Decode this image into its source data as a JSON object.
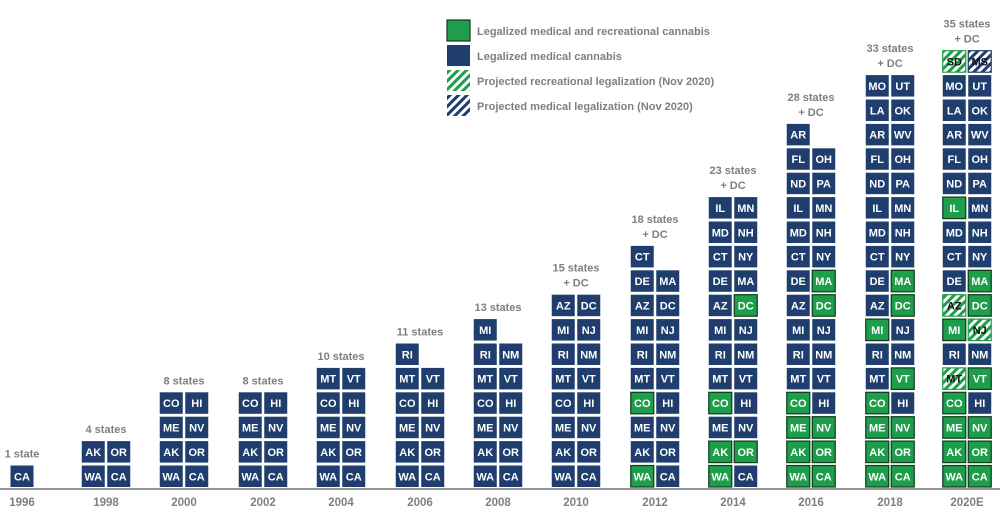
{
  "chart_data": {
    "type": "bar",
    "colors": {
      "medical": "#1f3e6e",
      "recreational": "#1e9e4a",
      "projected_recreational": "#1e9e4a",
      "projected_medical": "#1f3e6e"
    },
    "legend": [
      {
        "key": "recreational",
        "label": "Legalized medical and recreational cannabis",
        "style": "solid"
      },
      {
        "key": "medical",
        "label": "Legalized medical cannabis",
        "style": "solid"
      },
      {
        "key": "projected_recreational",
        "label": "Projected recreational legalization (Nov 2020)",
        "style": "hatch"
      },
      {
        "key": "projected_medical",
        "label": "Projected medical legalization (Nov 2020)",
        "style": "hatch"
      }
    ],
    "years": [
      {
        "year": "1996",
        "count_label": [
          "1 state"
        ],
        "value": 1,
        "left": [
          {
            "s": "CA",
            "t": "m"
          }
        ],
        "right": []
      },
      {
        "year": "1998",
        "count_label": [
          "4 states"
        ],
        "value": 4,
        "left": [
          {
            "s": "AK",
            "t": "m"
          },
          {
            "s": "WA",
            "t": "m"
          }
        ],
        "right": [
          {
            "s": "OR",
            "t": "m"
          },
          {
            "s": "CA",
            "t": "m"
          }
        ]
      },
      {
        "year": "2000",
        "count_label": [
          "8 states"
        ],
        "value": 8,
        "left": [
          {
            "s": "CO",
            "t": "m"
          },
          {
            "s": "ME",
            "t": "m"
          },
          {
            "s": "AK",
            "t": "m"
          },
          {
            "s": "WA",
            "t": "m"
          }
        ],
        "right": [
          {
            "s": "HI",
            "t": "m"
          },
          {
            "s": "NV",
            "t": "m"
          },
          {
            "s": "OR",
            "t": "m"
          },
          {
            "s": "CA",
            "t": "m"
          }
        ]
      },
      {
        "year": "2002",
        "count_label": [
          "8 states"
        ],
        "value": 8,
        "left": [
          {
            "s": "CO",
            "t": "m"
          },
          {
            "s": "ME",
            "t": "m"
          },
          {
            "s": "AK",
            "t": "m"
          },
          {
            "s": "WA",
            "t": "m"
          }
        ],
        "right": [
          {
            "s": "HI",
            "t": "m"
          },
          {
            "s": "NV",
            "t": "m"
          },
          {
            "s": "OR",
            "t": "m"
          },
          {
            "s": "CA",
            "t": "m"
          }
        ]
      },
      {
        "year": "2004",
        "count_label": [
          "10 states"
        ],
        "value": 10,
        "left": [
          {
            "s": "MT",
            "t": "m"
          },
          {
            "s": "CO",
            "t": "m"
          },
          {
            "s": "ME",
            "t": "m"
          },
          {
            "s": "AK",
            "t": "m"
          },
          {
            "s": "WA",
            "t": "m"
          }
        ],
        "right": [
          {
            "s": "VT",
            "t": "m"
          },
          {
            "s": "HI",
            "t": "m"
          },
          {
            "s": "NV",
            "t": "m"
          },
          {
            "s": "OR",
            "t": "m"
          },
          {
            "s": "CA",
            "t": "m"
          }
        ]
      },
      {
        "year": "2006",
        "count_label": [
          "11 states"
        ],
        "value": 11,
        "left": [
          {
            "s": "RI",
            "t": "m"
          },
          {
            "s": "MT",
            "t": "m"
          },
          {
            "s": "CO",
            "t": "m"
          },
          {
            "s": "ME",
            "t": "m"
          },
          {
            "s": "AK",
            "t": "m"
          },
          {
            "s": "WA",
            "t": "m"
          }
        ],
        "right": [
          {
            "s": "VT",
            "t": "m"
          },
          {
            "s": "HI",
            "t": "m"
          },
          {
            "s": "NV",
            "t": "m"
          },
          {
            "s": "OR",
            "t": "m"
          },
          {
            "s": "CA",
            "t": "m"
          }
        ]
      },
      {
        "year": "2008",
        "count_label": [
          "13 states"
        ],
        "value": 13,
        "left": [
          {
            "s": "MI",
            "t": "m"
          },
          {
            "s": "RI",
            "t": "m"
          },
          {
            "s": "MT",
            "t": "m"
          },
          {
            "s": "CO",
            "t": "m"
          },
          {
            "s": "ME",
            "t": "m"
          },
          {
            "s": "AK",
            "t": "m"
          },
          {
            "s": "WA",
            "t": "m"
          }
        ],
        "right": [
          {
            "s": "NM",
            "t": "m"
          },
          {
            "s": "VT",
            "t": "m"
          },
          {
            "s": "HI",
            "t": "m"
          },
          {
            "s": "NV",
            "t": "m"
          },
          {
            "s": "OR",
            "t": "m"
          },
          {
            "s": "CA",
            "t": "m"
          }
        ]
      },
      {
        "year": "2010",
        "count_label": [
          "15 states",
          "+ DC"
        ],
        "value": 15,
        "left": [
          {
            "s": "AZ",
            "t": "m"
          },
          {
            "s": "MI",
            "t": "m"
          },
          {
            "s": "RI",
            "t": "m"
          },
          {
            "s": "MT",
            "t": "m"
          },
          {
            "s": "CO",
            "t": "m"
          },
          {
            "s": "ME",
            "t": "m"
          },
          {
            "s": "AK",
            "t": "m"
          },
          {
            "s": "WA",
            "t": "m"
          }
        ],
        "right": [
          {
            "s": "DC",
            "t": "m"
          },
          {
            "s": "NJ",
            "t": "m"
          },
          {
            "s": "NM",
            "t": "m"
          },
          {
            "s": "VT",
            "t": "m"
          },
          {
            "s": "HI",
            "t": "m"
          },
          {
            "s": "NV",
            "t": "m"
          },
          {
            "s": "OR",
            "t": "m"
          },
          {
            "s": "CA",
            "t": "m"
          }
        ]
      },
      {
        "year": "2012",
        "count_label": [
          "18 states",
          "+ DC"
        ],
        "value": 18,
        "left": [
          {
            "s": "CT",
            "t": "m"
          },
          {
            "s": "DE",
            "t": "m"
          },
          {
            "s": "AZ",
            "t": "m"
          },
          {
            "s": "MI",
            "t": "m"
          },
          {
            "s": "RI",
            "t": "m"
          },
          {
            "s": "MT",
            "t": "m"
          },
          {
            "s": "CO",
            "t": "r"
          },
          {
            "s": "ME",
            "t": "m"
          },
          {
            "s": "AK",
            "t": "m"
          },
          {
            "s": "WA",
            "t": "r"
          }
        ],
        "right": [
          {
            "s": "MA",
            "t": "m"
          },
          {
            "s": "DC",
            "t": "m"
          },
          {
            "s": "NJ",
            "t": "m"
          },
          {
            "s": "NM",
            "t": "m"
          },
          {
            "s": "VT",
            "t": "m"
          },
          {
            "s": "HI",
            "t": "m"
          },
          {
            "s": "NV",
            "t": "m"
          },
          {
            "s": "OR",
            "t": "m"
          },
          {
            "s": "CA",
            "t": "m"
          }
        ]
      },
      {
        "year": "2014",
        "count_label": [
          "23 states",
          "+ DC"
        ],
        "value": 23,
        "left": [
          {
            "s": "IL",
            "t": "m"
          },
          {
            "s": "MD",
            "t": "m"
          },
          {
            "s": "CT",
            "t": "m"
          },
          {
            "s": "DE",
            "t": "m"
          },
          {
            "s": "AZ",
            "t": "m"
          },
          {
            "s": "MI",
            "t": "m"
          },
          {
            "s": "RI",
            "t": "m"
          },
          {
            "s": "MT",
            "t": "m"
          },
          {
            "s": "CO",
            "t": "r"
          },
          {
            "s": "ME",
            "t": "m"
          },
          {
            "s": "AK",
            "t": "r"
          },
          {
            "s": "WA",
            "t": "r"
          }
        ],
        "right": [
          {
            "s": "MN",
            "t": "m"
          },
          {
            "s": "NH",
            "t": "m"
          },
          {
            "s": "NY",
            "t": "m"
          },
          {
            "s": "MA",
            "t": "m"
          },
          {
            "s": "DC",
            "t": "r"
          },
          {
            "s": "NJ",
            "t": "m"
          },
          {
            "s": "NM",
            "t": "m"
          },
          {
            "s": "VT",
            "t": "m"
          },
          {
            "s": "HI",
            "t": "m"
          },
          {
            "s": "NV",
            "t": "m"
          },
          {
            "s": "OR",
            "t": "r"
          },
          {
            "s": "CA",
            "t": "m"
          }
        ]
      },
      {
        "year": "2016",
        "count_label": [
          "28 states",
          "+ DC"
        ],
        "value": 28,
        "left": [
          {
            "s": "AR",
            "t": "m"
          },
          {
            "s": "FL",
            "t": "m"
          },
          {
            "s": "ND",
            "t": "m"
          },
          {
            "s": "IL",
            "t": "m"
          },
          {
            "s": "MD",
            "t": "m"
          },
          {
            "s": "CT",
            "t": "m"
          },
          {
            "s": "DE",
            "t": "m"
          },
          {
            "s": "AZ",
            "t": "m"
          },
          {
            "s": "MI",
            "t": "m"
          },
          {
            "s": "RI",
            "t": "m"
          },
          {
            "s": "MT",
            "t": "m"
          },
          {
            "s": "CO",
            "t": "r"
          },
          {
            "s": "ME",
            "t": "r"
          },
          {
            "s": "AK",
            "t": "r"
          },
          {
            "s": "WA",
            "t": "r"
          }
        ],
        "right": [
          {
            "s": "OH",
            "t": "m"
          },
          {
            "s": "PA",
            "t": "m"
          },
          {
            "s": "MN",
            "t": "m"
          },
          {
            "s": "NH",
            "t": "m"
          },
          {
            "s": "NY",
            "t": "m"
          },
          {
            "s": "MA",
            "t": "r"
          },
          {
            "s": "DC",
            "t": "r"
          },
          {
            "s": "NJ",
            "t": "m"
          },
          {
            "s": "NM",
            "t": "m"
          },
          {
            "s": "VT",
            "t": "m"
          },
          {
            "s": "HI",
            "t": "m"
          },
          {
            "s": "NV",
            "t": "r"
          },
          {
            "s": "OR",
            "t": "r"
          },
          {
            "s": "CA",
            "t": "r"
          }
        ]
      },
      {
        "year": "2018",
        "count_label": [
          "33 states",
          "+ DC"
        ],
        "value": 33,
        "left": [
          {
            "s": "MO",
            "t": "m"
          },
          {
            "s": "LA",
            "t": "m"
          },
          {
            "s": "AR",
            "t": "m"
          },
          {
            "s": "FL",
            "t": "m"
          },
          {
            "s": "ND",
            "t": "m"
          },
          {
            "s": "IL",
            "t": "m"
          },
          {
            "s": "MD",
            "t": "m"
          },
          {
            "s": "CT",
            "t": "m"
          },
          {
            "s": "DE",
            "t": "m"
          },
          {
            "s": "AZ",
            "t": "m"
          },
          {
            "s": "MI",
            "t": "r"
          },
          {
            "s": "RI",
            "t": "m"
          },
          {
            "s": "MT",
            "t": "m"
          },
          {
            "s": "CO",
            "t": "r"
          },
          {
            "s": "ME",
            "t": "r"
          },
          {
            "s": "AK",
            "t": "r"
          },
          {
            "s": "WA",
            "t": "r"
          }
        ],
        "right": [
          {
            "s": "UT",
            "t": "m"
          },
          {
            "s": "OK",
            "t": "m"
          },
          {
            "s": "WV",
            "t": "m"
          },
          {
            "s": "OH",
            "t": "m"
          },
          {
            "s": "PA",
            "t": "m"
          },
          {
            "s": "MN",
            "t": "m"
          },
          {
            "s": "NH",
            "t": "m"
          },
          {
            "s": "NY",
            "t": "m"
          },
          {
            "s": "MA",
            "t": "r"
          },
          {
            "s": "DC",
            "t": "r"
          },
          {
            "s": "NJ",
            "t": "m"
          },
          {
            "s": "NM",
            "t": "m"
          },
          {
            "s": "VT",
            "t": "r"
          },
          {
            "s": "HI",
            "t": "m"
          },
          {
            "s": "NV",
            "t": "r"
          },
          {
            "s": "OR",
            "t": "r"
          },
          {
            "s": "CA",
            "t": "r"
          }
        ]
      },
      {
        "year": "2020E",
        "count_label": [
          "35 states",
          "+ DC"
        ],
        "value": 35,
        "left": [
          {
            "s": "SD",
            "t": "pr"
          },
          {
            "s": "MO",
            "t": "m"
          },
          {
            "s": "LA",
            "t": "m"
          },
          {
            "s": "AR",
            "t": "m"
          },
          {
            "s": "FL",
            "t": "m"
          },
          {
            "s": "ND",
            "t": "m"
          },
          {
            "s": "IL",
            "t": "r"
          },
          {
            "s": "MD",
            "t": "m"
          },
          {
            "s": "CT",
            "t": "m"
          },
          {
            "s": "DE",
            "t": "m"
          },
          {
            "s": "AZ",
            "t": "pr"
          },
          {
            "s": "MI",
            "t": "r"
          },
          {
            "s": "RI",
            "t": "m"
          },
          {
            "s": "MT",
            "t": "pr"
          },
          {
            "s": "CO",
            "t": "r"
          },
          {
            "s": "ME",
            "t": "r"
          },
          {
            "s": "AK",
            "t": "r"
          },
          {
            "s": "WA",
            "t": "r"
          }
        ],
        "right": [
          {
            "s": "MS",
            "t": "pm"
          },
          {
            "s": "UT",
            "t": "m"
          },
          {
            "s": "OK",
            "t": "m"
          },
          {
            "s": "WV",
            "t": "m"
          },
          {
            "s": "OH",
            "t": "m"
          },
          {
            "s": "PA",
            "t": "m"
          },
          {
            "s": "MN",
            "t": "m"
          },
          {
            "s": "NH",
            "t": "m"
          },
          {
            "s": "NY",
            "t": "m"
          },
          {
            "s": "MA",
            "t": "r"
          },
          {
            "s": "DC",
            "t": "r"
          },
          {
            "s": "NJ",
            "t": "pr"
          },
          {
            "s": "NM",
            "t": "m"
          },
          {
            "s": "VT",
            "t": "r"
          },
          {
            "s": "HI",
            "t": "m"
          },
          {
            "s": "NV",
            "t": "r"
          },
          {
            "s": "OR",
            "t": "r"
          },
          {
            "s": "CA",
            "t": "r"
          }
        ]
      }
    ]
  }
}
